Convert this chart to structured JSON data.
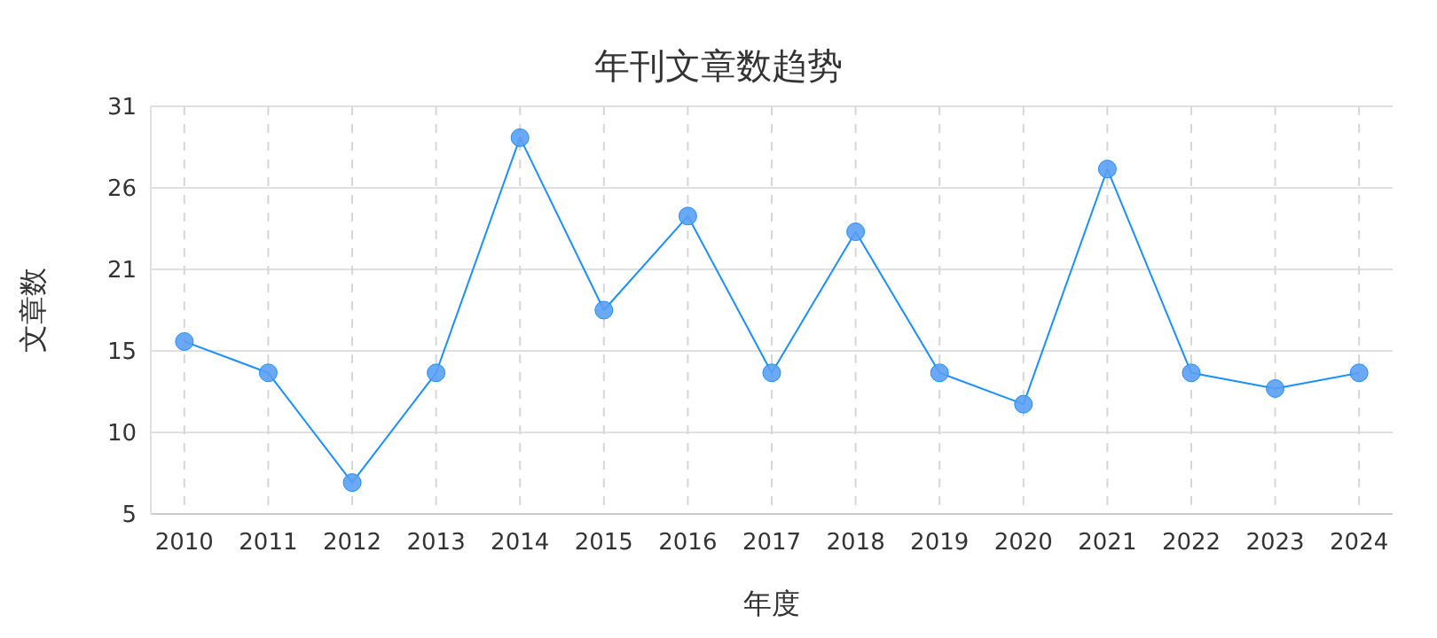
{
  "chart_data": {
    "type": "line",
    "title": "年刊文章数趋势",
    "xlabel": "年度",
    "ylabel": "文章数",
    "categories": [
      "2010",
      "2011",
      "2012",
      "2013",
      "2014",
      "2015",
      "2016",
      "2017",
      "2018",
      "2019",
      "2020",
      "2021",
      "2022",
      "2023",
      "2024"
    ],
    "series": [
      {
        "color": "#1890ff",
        "values": [
          16,
          14,
          7,
          14,
          29,
          18,
          24,
          14,
          23,
          14,
          12,
          27,
          14,
          13,
          14
        ]
      }
    ],
    "ylim": [
      5,
      31
    ],
    "yticks": [
      5,
      {
        "value": 10.2,
        "label": "10"
      },
      {
        "value": 15.4,
        "label": "15"
      },
      {
        "value": 20.6,
        "label": "21"
      },
      {
        "value": 25.8,
        "label": "26"
      },
      31
    ],
    "grid": true,
    "marker": "circle",
    "line_style": "solid"
  }
}
